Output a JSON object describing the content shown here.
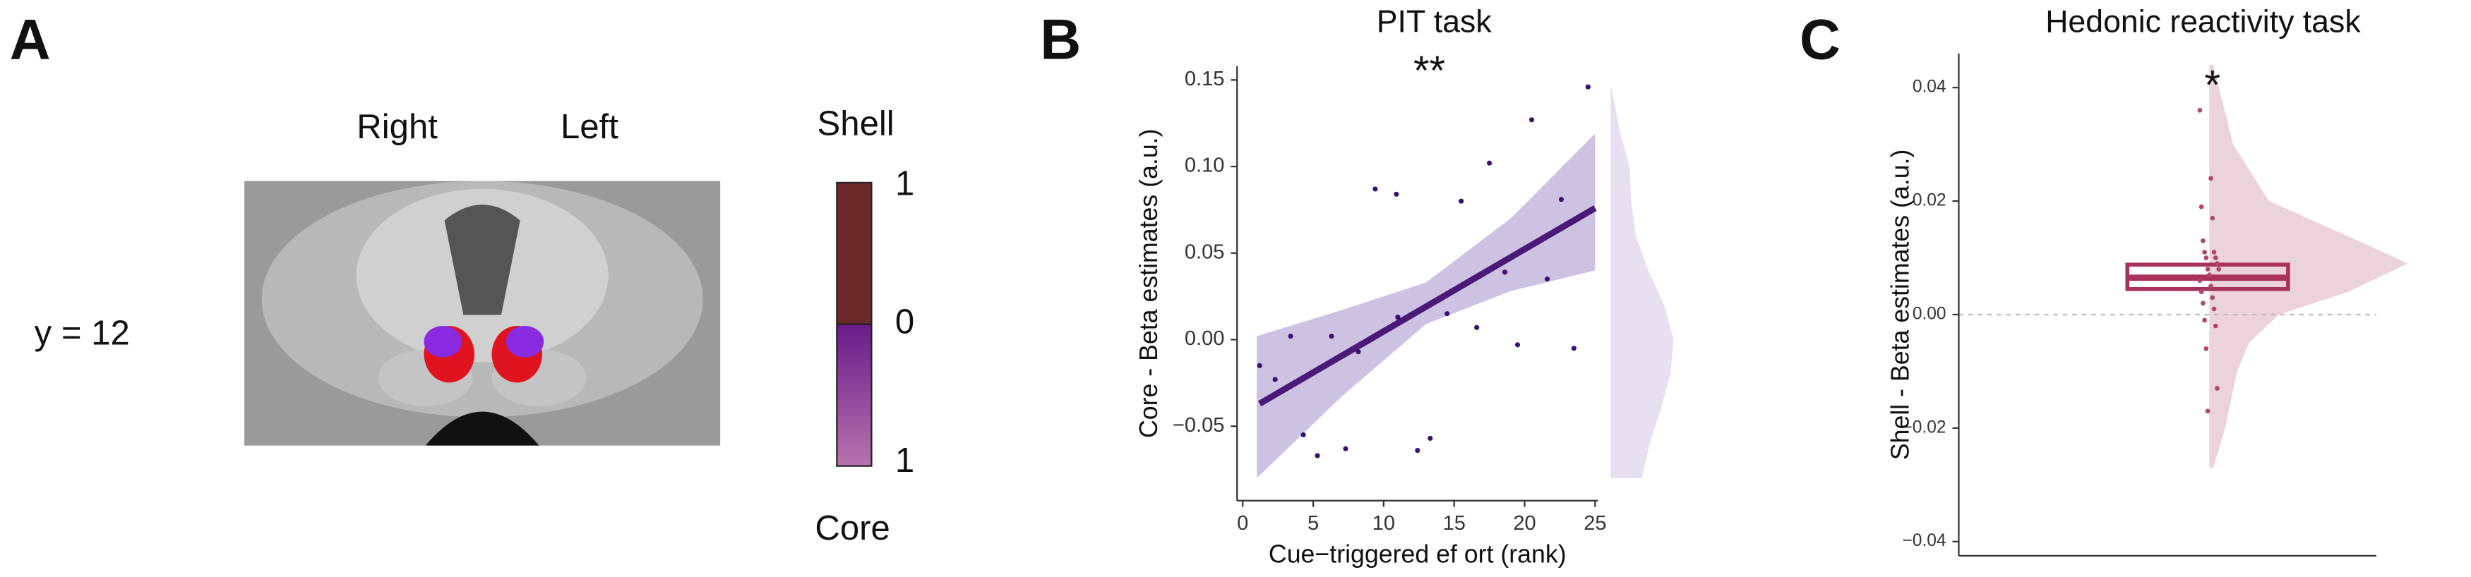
{
  "panel_a": {
    "label": "A",
    "hemispheres": [
      "Right",
      "Left"
    ],
    "slice": "y = 12",
    "colorbar": {
      "top": "Shell",
      "bottom": "Core",
      "ticks": [
        "1",
        "0",
        "1"
      ]
    }
  },
  "chart_data": [
    {
      "type": "scatter",
      "panel": "B",
      "title": "PIT task",
      "annotation": "**",
      "x_label": "Cue−triggered ef ort (rank)",
      "y_label": "Core - Beta estimates (a.u.)",
      "color": "#3b0f70",
      "x": [
        1.2,
        2.3,
        3.4,
        4.3,
        5.3,
        6.3,
        7.3,
        8.2,
        9.4,
        10.9,
        11.0,
        12.4,
        13.3,
        14.5,
        15.5,
        16.6,
        17.5,
        18.6,
        19.5,
        20.5,
        21.6,
        22.6,
        23.5,
        24.5
      ],
      "y": [
        -0.015,
        -0.023,
        0.002,
        -0.055,
        -0.067,
        0.002,
        -0.063,
        -0.007,
        0.087,
        0.084,
        0.013,
        -0.064,
        -0.057,
        0.015,
        0.08,
        0.007,
        0.102,
        0.039,
        -0.003,
        0.127,
        0.035,
        0.081,
        -0.005,
        0.146
      ],
      "fit": {
        "x": [
          1.2,
          25
        ],
        "y": [
          -0.037,
          0.076
        ],
        "color": "#4b1a78"
      },
      "band": {
        "x": [
          1,
          7,
          13,
          19,
          25
        ],
        "lower": [
          -0.08,
          -0.033,
          0.009,
          0.028,
          0.04
        ],
        "upper": [
          0.002,
          0.017,
          0.033,
          0.07,
          0.119
        ],
        "color": "#c2b3dc"
      },
      "density": {
        "y": [
          -0.08,
          -0.06,
          -0.04,
          -0.02,
          0,
          0.02,
          0.04,
          0.06,
          0.08,
          0.1,
          0.12,
          0.145
        ],
        "width": [
          0.5,
          0.62,
          0.8,
          0.95,
          1.0,
          0.85,
          0.6,
          0.4,
          0.33,
          0.3,
          0.15,
          0.02
        ],
        "color": "#e6e0f0"
      },
      "xlim": [
        -0.4,
        25.2
      ],
      "ylim": [
        -0.093,
        0.158
      ],
      "xticks": [
        0,
        5,
        10,
        15,
        20,
        25
      ],
      "yticks": [
        {
          "value": -0.05,
          "label": "−0.05"
        },
        {
          "value": 0,
          "label": "0.00"
        },
        0.05,
        {
          "value": 0.1,
          "label": "0.10"
        },
        0.15
      ]
    },
    {
      "type": "raincloud",
      "panel": "C",
      "title": "Hedonic reactivity task",
      "annotation": "*",
      "y_label": "Shell - Beta estimates (a.u.)",
      "color": "#b04766",
      "values": [
        0.036,
        0.024,
        0.019,
        0.017,
        0.013,
        0.011,
        0.011,
        0.01,
        0.01,
        0.009,
        0.008,
        0.008,
        0.007,
        0.006,
        0.005,
        0.004,
        0.003,
        0.002,
        0.001,
        -0.001,
        -0.002,
        -0.006,
        -0.013,
        -0.017
      ],
      "box": {
        "q1": 0.0045,
        "median": 0.0065,
        "q3": 0.0088,
        "color": "#a8325a"
      },
      "density": {
        "y": [
          -0.027,
          -0.02,
          -0.01,
          -0.005,
          0,
          0.004,
          0.009,
          0.013,
          0.02,
          0.03,
          0.044
        ],
        "width": [
          0.02,
          0.08,
          0.14,
          0.2,
          0.35,
          0.7,
          1.0,
          0.75,
          0.3,
          0.12,
          0.02
        ],
        "color": "#ecd3db"
      },
      "hline": 0,
      "ylim": [
        -0.0425,
        0.046
      ],
      "yticks": [
        {
          "value": -0.04,
          "label": "−0.04"
        },
        {
          "value": -0.02,
          "label": "−0.02"
        },
        {
          "value": 0,
          "label": "0.00"
        },
        0.02,
        0.04
      ]
    }
  ]
}
